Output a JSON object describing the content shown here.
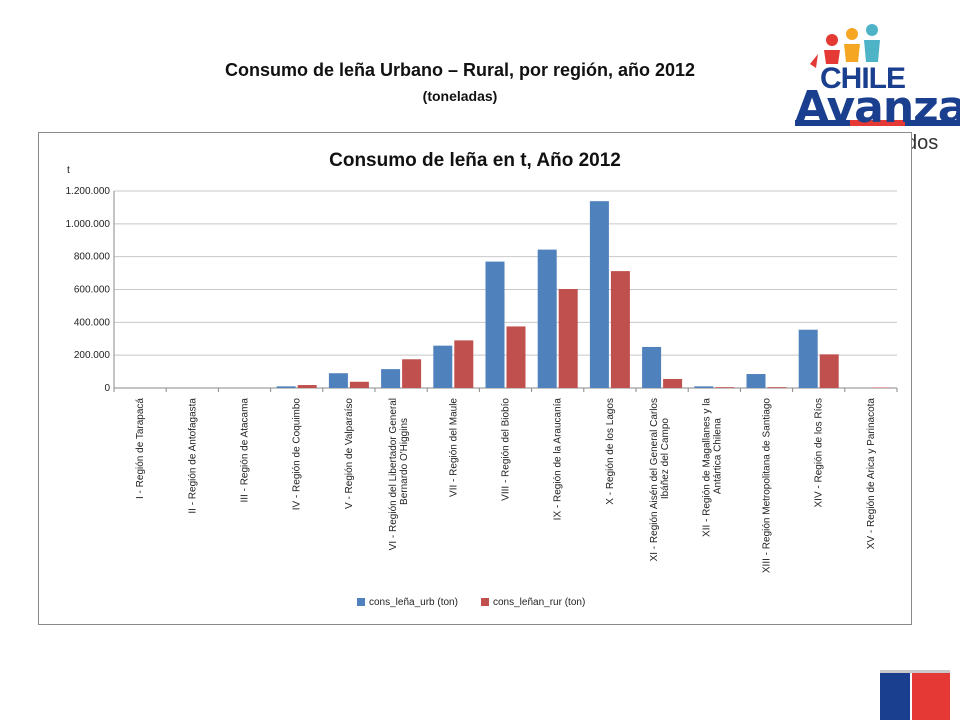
{
  "slide": {
    "title": "Consumo de leña Urbano – Rural, por región, año 2012",
    "subtitle": "(toneladas)"
  },
  "logo": {
    "icon": "children-icon",
    "line1": "CHILE",
    "line2": "Avanza",
    "tail": "dos",
    "colors": [
      "#1b3f8f",
      "#e53935",
      "#f5a623",
      "#4fb3c8"
    ]
  },
  "chart_data": {
    "type": "bar",
    "title": "Consumo de leña en t, Año 2012",
    "ylabel": "t",
    "ylim": [
      0,
      1200000
    ],
    "yticks": [
      0,
      200000,
      400000,
      600000,
      800000,
      1000000,
      1200000
    ],
    "ytick_labels": [
      "0",
      "200.000",
      "400.000",
      "600.000",
      "800.000",
      "1.000.000",
      "1.200.000"
    ],
    "grid": true,
    "legend_position": "bottom",
    "categories": [
      "I - Región de Tarapacá",
      "II - Región de Antofagasta",
      "III - Región de Atacama",
      "IV - Región de Coquimbo",
      "V - Región de Valparaíso",
      "VI - Región del Libertador General Bernardo O'Higgins",
      "VII - Región del Maule",
      "VIII - Región del Biobío",
      "IX - Región de la Araucanía",
      "X - Región de los Lagos",
      "XI - Región Aisén del General Carlos Ibáñez del Campo",
      "XII - Región de Magallanes y la Antártica Chilena",
      "XIII - Región Metropolitana de Santiago",
      "XIV - Región de los Ríos",
      "XV - Región de Arica y Parinacota"
    ],
    "series": [
      {
        "name": "cons_leña_urb (ton)",
        "color": "#4f81bd",
        "values": [
          0,
          0,
          0,
          10000,
          90000,
          115000,
          258000,
          770000,
          843000,
          1138000,
          250000,
          10000,
          85000,
          355000,
          0
        ]
      },
      {
        "name": "cons_leñan_rur (ton)",
        "color": "#c0504d",
        "values": [
          0,
          0,
          0,
          18000,
          38000,
          175000,
          290000,
          375000,
          603000,
          712000,
          55000,
          5000,
          5000,
          205000,
          3000
        ]
      }
    ]
  }
}
